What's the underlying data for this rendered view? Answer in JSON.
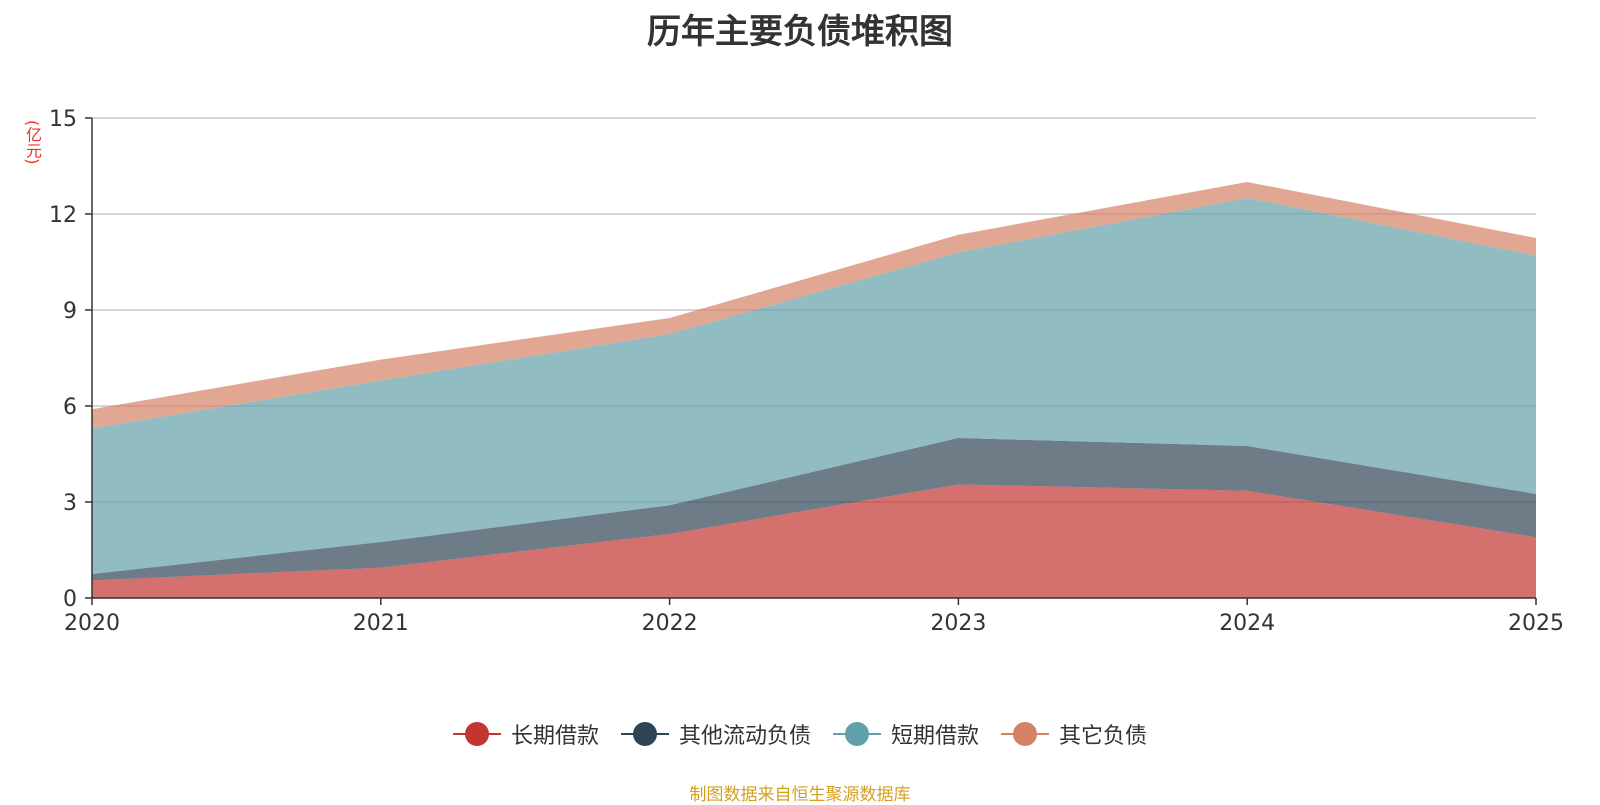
{
  "chart_data": {
    "type": "area",
    "stacked": true,
    "title": "历年主要负债堆积图",
    "ylabel": "(亿元)",
    "xlabel": "",
    "x": [
      "2020",
      "2021",
      "2022",
      "2023",
      "2024",
      "2025"
    ],
    "ylim": [
      0,
      15
    ],
    "yticks": [
      "0",
      "3",
      "6",
      "9",
      "12",
      "15"
    ],
    "grid": true,
    "legend_position": "bottom",
    "series": [
      {
        "name": "长期借款",
        "color": "#c23531",
        "values": [
          0.55,
          0.95,
          2.0,
          3.55,
          3.35,
          1.9
        ]
      },
      {
        "name": "其他流动负债",
        "color": "#2f4554",
        "values": [
          0.2,
          0.8,
          0.9,
          1.45,
          1.4,
          1.35
        ]
      },
      {
        "name": "短期借款",
        "color": "#61a0a8",
        "values": [
          4.55,
          5.05,
          5.35,
          5.8,
          7.75,
          7.45
        ]
      },
      {
        "name": "其它负债",
        "color": "#d48265",
        "values": [
          0.6,
          0.65,
          0.5,
          0.55,
          0.5,
          0.55
        ]
      }
    ]
  },
  "source_note": "制图数据来自恒生聚源数据库"
}
